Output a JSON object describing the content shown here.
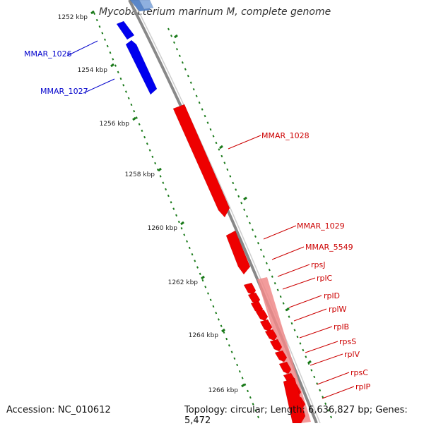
{
  "title": "Mycobacterium marinum M, complete genome",
  "footer": {
    "accession": "Accession: NC_010612",
    "summary": "Topology: circular; Length: 6,636,827 bp; Genes: 5,472"
  },
  "colors": {
    "forward_gene": "#0000ee",
    "reverse_gene": "#ee0000",
    "operon": "#f08a8a",
    "backbone": "#888888",
    "tick": "#1a7a1a",
    "label_blue": "#0000cc",
    "label_red": "#cc0000"
  },
  "tick_labels": [
    "1252 kbp",
    "1254 kbp",
    "1256 kbp",
    "1258 kbp",
    "1260 kbp",
    "1262 kbp",
    "1264 kbp",
    "1266 kbp"
  ],
  "gene_labels": [
    {
      "name": "MMAR_1026",
      "strand": "forward"
    },
    {
      "name": "MMAR_1027",
      "strand": "forward"
    },
    {
      "name": "MMAR_1028",
      "strand": "reverse"
    },
    {
      "name": "MMAR_1029",
      "strand": "reverse"
    },
    {
      "name": "MMAR_5549",
      "strand": "reverse"
    },
    {
      "name": "rpsJ",
      "strand": "reverse"
    },
    {
      "name": "rplC",
      "strand": "reverse"
    },
    {
      "name": "rplD",
      "strand": "reverse"
    },
    {
      "name": "rplW",
      "strand": "reverse"
    },
    {
      "name": "rplB",
      "strand": "reverse"
    },
    {
      "name": "rpsS",
      "strand": "reverse"
    },
    {
      "name": "rplV",
      "strand": "reverse"
    },
    {
      "name": "rpsC",
      "strand": "reverse"
    },
    {
      "name": "rplP",
      "strand": "reverse"
    }
  ]
}
